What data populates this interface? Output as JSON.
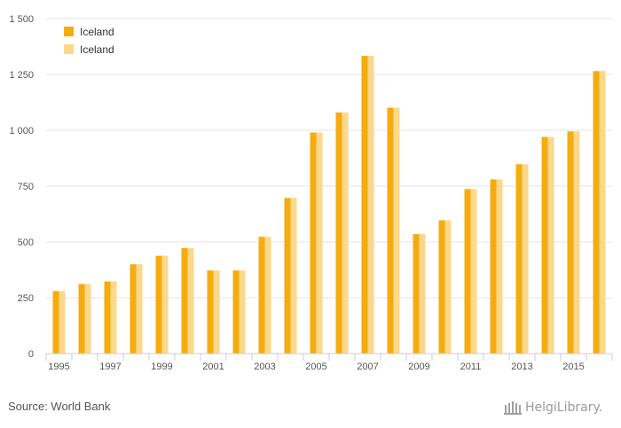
{
  "chart_data": {
    "type": "bar",
    "title": "",
    "xlabel": "",
    "ylabel": "",
    "ylim": [
      0,
      1500
    ],
    "yticks": [
      0,
      250,
      500,
      750,
      1000,
      1250,
      1500
    ],
    "ytick_labels": [
      "0",
      "250",
      "500",
      "750",
      "1 000",
      "1 250",
      "1 500"
    ],
    "categories": [
      "1995",
      "1996",
      "1997",
      "1998",
      "1999",
      "2000",
      "2001",
      "2002",
      "2003",
      "2004",
      "2005",
      "2006",
      "2007",
      "2008",
      "2009",
      "2010",
      "2011",
      "2012",
      "2013",
      "2014",
      "2015",
      "2016"
    ],
    "xtick_labels": [
      "1995",
      "",
      "1997",
      "",
      "1999",
      "",
      "2001",
      "",
      "2003",
      "",
      "2005",
      "",
      "2007",
      "",
      "2009",
      "",
      "2011",
      "",
      "2013",
      "",
      "2015",
      ""
    ],
    "series": [
      {
        "name": "Iceland",
        "color": "#F5AC10",
        "values": [
          280,
          312,
          323,
          400,
          438,
          472,
          372,
          372,
          523,
          697,
          990,
          1080,
          1333,
          1101,
          535,
          597,
          737,
          780,
          848,
          970,
          995,
          1265
        ]
      },
      {
        "name": "Iceland",
        "color": "#FCD88A",
        "values": [
          280,
          312,
          323,
          400,
          438,
          472,
          372,
          372,
          523,
          697,
          990,
          1080,
          1333,
          1101,
          535,
          597,
          737,
          780,
          848,
          970,
          995,
          1265
        ]
      }
    ],
    "grid": true,
    "legend_position": "top-left"
  },
  "footer": {
    "source": "Source: World Bank",
    "logo_text": "HelgiLibrary."
  }
}
